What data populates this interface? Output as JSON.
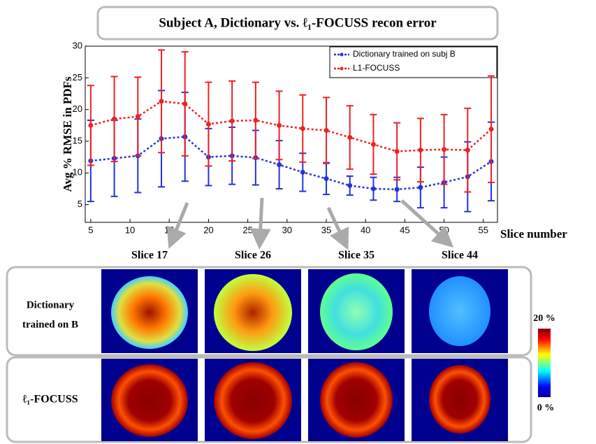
{
  "title": "Subject A, Dictionary vs. ℓ₁-FOCUSS recon error",
  "chart_data": {
    "type": "line",
    "y_label": "Avg % RMSE in PDFs",
    "x_label": "Slice number",
    "x": [
      5,
      8,
      11,
      14,
      17,
      20,
      23,
      26,
      29,
      32,
      35,
      38,
      41,
      44,
      47,
      50,
      53,
      56
    ],
    "series": [
      {
        "name": "Dictionary trained on subj B",
        "color": "#2233dd",
        "values": [
          11.9,
          12.3,
          12.7,
          15.4,
          15.7,
          12.5,
          12.7,
          12.4,
          11.3,
          10.1,
          9.1,
          8.0,
          7.5,
          7.4,
          7.7,
          8.5,
          9.4,
          11.8
        ],
        "errors": [
          6.4,
          6.0,
          5.8,
          7.6,
          7.0,
          4.5,
          4.5,
          4.3,
          3.8,
          3.0,
          2.5,
          1.5,
          1.8,
          1.9,
          3.2,
          4.0,
          5.5,
          6.2
        ]
      },
      {
        "name": "L1-FOCUSS",
        "color": "#ee2222",
        "values": [
          17.5,
          18.5,
          18.9,
          21.3,
          20.9,
          17.7,
          18.2,
          18.3,
          17.5,
          17.0,
          16.7,
          15.6,
          14.5,
          13.4,
          13.6,
          13.7,
          13.6,
          16.9
        ],
        "errors": [
          6.3,
          6.7,
          6.2,
          8.1,
          8.2,
          6.6,
          6.3,
          6.0,
          5.4,
          5.3,
          5.2,
          5.0,
          4.7,
          4.5,
          5.0,
          5.5,
          6.6,
          8.4
        ]
      }
    ],
    "xlim": [
      4.3,
      56.8
    ],
    "xticks": [
      5,
      10,
      15,
      20,
      25,
      30,
      35,
      40,
      45,
      50,
      55
    ],
    "ylim": [
      2.2,
      30
    ],
    "yticks": [
      5,
      10,
      15,
      20,
      25,
      30
    ],
    "legend": "upper right"
  },
  "panels": {
    "slices": [
      "Slice 17",
      "Slice 26",
      "Slice 35",
      "Slice 44"
    ],
    "rows": [
      [
        "Dictionary",
        "trained  on B"
      ],
      [
        "ℓ₁-FOCUSS"
      ]
    ],
    "colorbar": {
      "max_label": "20 %",
      "min_label": "0 %"
    }
  }
}
